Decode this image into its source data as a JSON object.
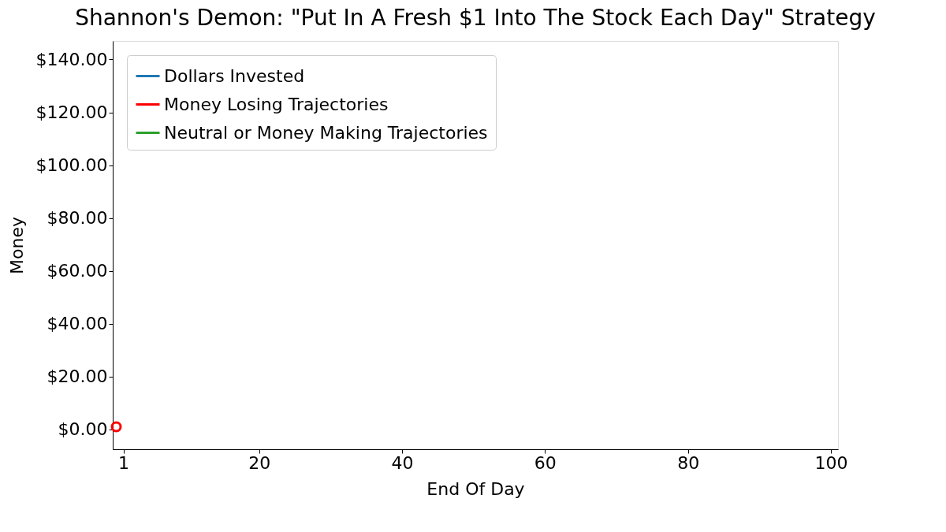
{
  "chart_data": {
    "type": "line",
    "title": "Shannon's Demon: \"Put In A Fresh $1 Into The Stock Each Day\" Strategy",
    "xlabel": "End Of Day",
    "ylabel": "Money",
    "xlim": [
      -0.5,
      101
    ],
    "xticks": [
      1,
      20,
      40,
      60,
      80,
      100
    ],
    "ylim": [
      -7.5,
      147
    ],
    "yticks": [
      {
        "value": 0,
        "label": "$0.00"
      },
      {
        "value": 20,
        "label": "$20.00"
      },
      {
        "value": 40,
        "label": "$40.00"
      },
      {
        "value": 60,
        "label": "$60.00"
      },
      {
        "value": 80,
        "label": "$80.00"
      },
      {
        "value": 100,
        "label": "$100.00"
      },
      {
        "value": 120,
        "label": "$120.00"
      },
      {
        "value": 140,
        "label": "$140.00"
      }
    ],
    "grid": false,
    "legend": "top left",
    "series": [
      {
        "name": "Dollars Invested",
        "color": "#1f77b4"
      },
      {
        "name": "Money Losing Trajectories",
        "color": "#ff0000",
        "x": [
          0
        ],
        "values": [
          1
        ],
        "marker": "circle"
      },
      {
        "name": "Neutral or Money Making Trajectories",
        "color": "#2ca02c"
      }
    ]
  }
}
